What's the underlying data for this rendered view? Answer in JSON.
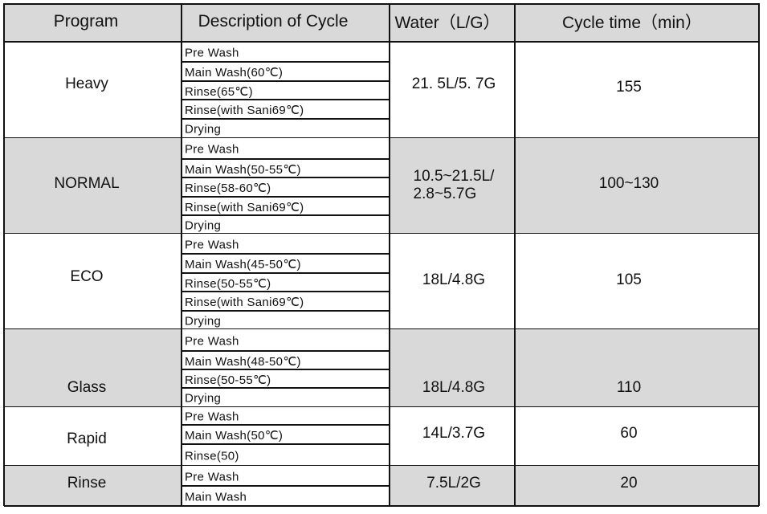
{
  "header": [
    "Program",
    "Description of Cycle",
    "Water（L/G）",
    "Cycle time（min）"
  ],
  "programs": [
    {
      "name": "Heavy",
      "steps": [
        "Pre Wash",
        "Main Wash(60℃)",
        "Rinse(65℃)",
        "Rinse(with Sani69℃)",
        "Drying"
      ],
      "water": "21. 5L/5. 7G",
      "time": "155"
    },
    {
      "name": "NORMAL",
      "steps": [
        "Pre Wash",
        "Main Wash(50-55℃)",
        "Rinse(58-60℃)",
        "Rinse(with Sani69℃)",
        "Drying"
      ],
      "water": "10.5~21.5L/\n2.8~5.7G",
      "time": "100~130"
    },
    {
      "name": "ECO",
      "steps": [
        "Pre Wash",
        "Main Wash(45-50℃)",
        "Rinse(50-55℃)",
        "Rinse(with Sani69℃)",
        "Drying"
      ],
      "water": "18L/4.8G",
      "time": "105"
    },
    {
      "name": "Glass",
      "steps": [
        "Pre Wash",
        "Main Wash(48-50℃)",
        "Rinse(50-55℃)",
        "Drying"
      ],
      "water": "18L/4.8G",
      "time": "110"
    },
    {
      "name": "Rapid",
      "steps": [
        "Pre Wash",
        "Main Wash(50℃)",
        "Rinse(50)"
      ],
      "water": "14L/3.7G",
      "time": "60"
    },
    {
      "name": "Rinse",
      "steps": [
        "Pre Wash",
        "Main Wash"
      ],
      "water": "7.5L/2G",
      "time": "20"
    }
  ]
}
